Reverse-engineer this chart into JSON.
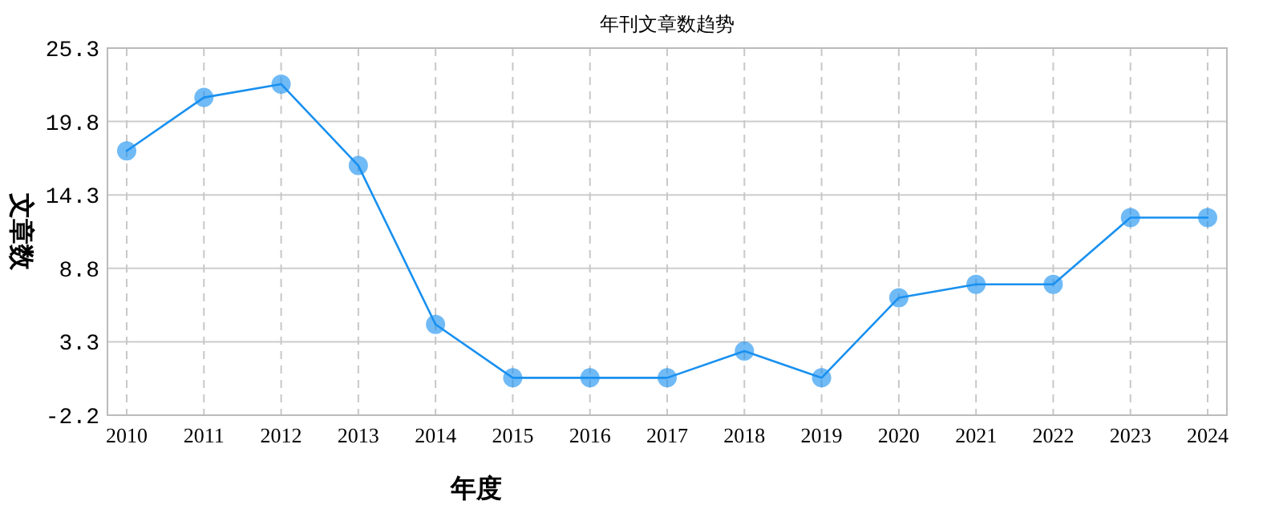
{
  "chart_data": {
    "type": "line",
    "title": "年刊文章数趋势",
    "xlabel": "年度",
    "ylabel": "文章数",
    "categories": [
      "2010",
      "2011",
      "2012",
      "2013",
      "2014",
      "2015",
      "2016",
      "2017",
      "2018",
      "2019",
      "2020",
      "2021",
      "2022",
      "2023",
      "2024"
    ],
    "series": [
      {
        "color": "#1890f0",
        "values": [
          17.6,
          21.6,
          22.6,
          16.5,
          4.6,
          0.6,
          0.6,
          0.6,
          2.6,
          0.6,
          6.6,
          7.6,
          7.6,
          12.6,
          12.6
        ]
      }
    ],
    "ylim": [
      -2.2,
      25.3
    ],
    "yticks": [
      -2.2,
      3.3,
      8.8,
      14.3,
      19.8,
      25.3
    ],
    "grid": true,
    "marker": "circle",
    "line_style": "solid"
  }
}
